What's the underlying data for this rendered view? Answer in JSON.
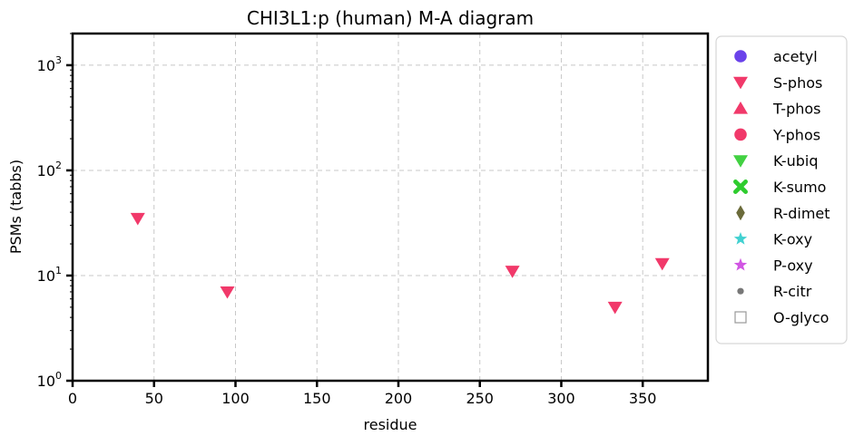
{
  "chart_data": {
    "type": "scatter",
    "title": "CHI3L1:p (human) M-A diagram",
    "xlabel": "residue",
    "ylabel": "PSMs (tabbs)",
    "xlim": [
      0,
      390
    ],
    "ylim": [
      1,
      2000
    ],
    "yscale": "log",
    "grid": true,
    "xticks": [
      0,
      50,
      100,
      150,
      200,
      250,
      300,
      350
    ],
    "yticks": [
      {
        "value": 1,
        "base": "10",
        "exp": "0"
      },
      {
        "value": 10,
        "base": "10",
        "exp": "1"
      },
      {
        "value": 100,
        "base": "10",
        "exp": "2"
      },
      {
        "value": 1000,
        "base": "10",
        "exp": "3"
      }
    ],
    "series": [
      {
        "name": "acetyl",
        "marker": "circle",
        "color": "#5a2ee8",
        "points": []
      },
      {
        "name": "S-phos",
        "marker": "triangle-down",
        "color": "#f0245a",
        "points": [
          {
            "x": 40,
            "y": 35
          },
          {
            "x": 95,
            "y": 7
          },
          {
            "x": 270,
            "y": 11
          },
          {
            "x": 333,
            "y": 5
          },
          {
            "x": 362,
            "y": 13
          }
        ]
      },
      {
        "name": "T-phos",
        "marker": "triangle-up",
        "color": "#f0245a",
        "points": []
      },
      {
        "name": "Y-phos",
        "marker": "circle",
        "color": "#f0245a",
        "points": []
      },
      {
        "name": "K-ubiq",
        "marker": "triangle-down",
        "color": "#2ecc2e",
        "points": []
      },
      {
        "name": "K-sumo",
        "marker": "x",
        "color": "#2ecc2e",
        "points": []
      },
      {
        "name": "R-dimet",
        "marker": "diamond",
        "color": "#6b6b3a",
        "points": []
      },
      {
        "name": "K-oxy",
        "marker": "star",
        "color": "#2ecccc",
        "points": []
      },
      {
        "name": "P-oxy",
        "marker": "star",
        "color": "#cc44e0",
        "points": []
      },
      {
        "name": "R-citr",
        "marker": "small-circle",
        "color": "#777777",
        "points": []
      },
      {
        "name": "O-glyco",
        "marker": "square-open",
        "color": "#999999",
        "points": []
      }
    ],
    "legend": "outside-right"
  }
}
